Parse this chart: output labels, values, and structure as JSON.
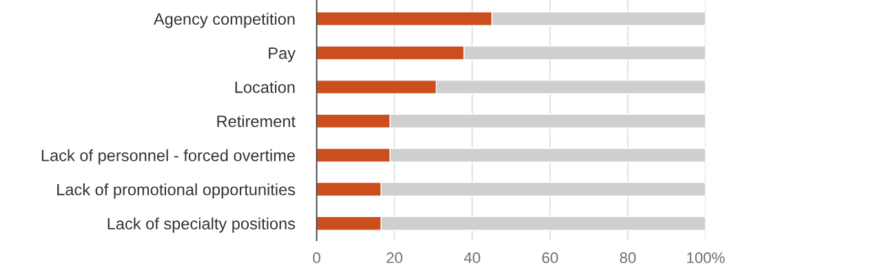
{
  "chart_data": {
    "type": "bar",
    "orientation": "horizontal",
    "stacked": true,
    "categories": [
      "Agency competition",
      "Pay",
      "Location",
      "Retirement",
      "Lack of personnel - forced overtime",
      "Lack of promotional opportunities",
      "Lack of specialty positions"
    ],
    "series": [
      {
        "color": "#cb4f1c",
        "values": [
          45.1,
          37.9,
          30.8,
          18.9,
          18.9,
          16.6,
          16.6
        ]
      },
      {
        "color": "#cfcfcf",
        "values": [
          54.9,
          62.1,
          69.2,
          81.1,
          81.1,
          83.4,
          83.4
        ]
      }
    ],
    "xlim": [
      0,
      100
    ],
    "xticks": [
      0,
      20,
      40,
      60,
      80,
      {
        "value": 100,
        "label": "100%"
      }
    ],
    "grid": "x"
  }
}
